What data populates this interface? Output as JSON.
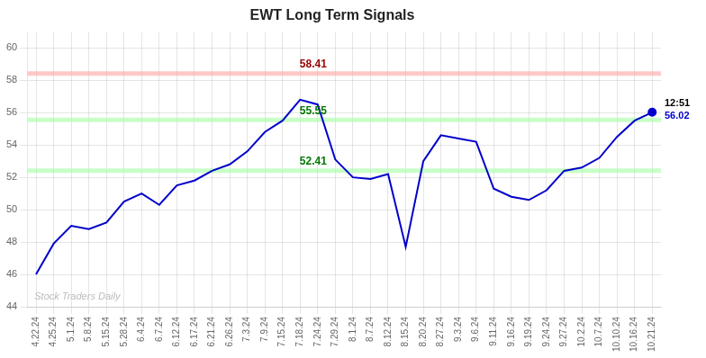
{
  "chart_data": {
    "type": "line",
    "title": "EWT Long Term Signals",
    "categories": [
      "4.22.24",
      "4.25.24",
      "5.1.24",
      "5.8.24",
      "5.15.24",
      "5.28.24",
      "6.4.24",
      "6.7.24",
      "6.12.24",
      "6.17.24",
      "6.21.24",
      "6.26.24",
      "7.3.24",
      "7.9.24",
      "7.15.24",
      "7.18.24",
      "7.24.24",
      "7.29.24",
      "8.1.24",
      "8.7.24",
      "8.12.24",
      "8.15.24",
      "8.20.24",
      "8.27.24",
      "9.3.24",
      "9.6.24",
      "9.11.24",
      "9.16.24",
      "9.19.24",
      "9.24.24",
      "9.27.24",
      "10.2.24",
      "10.7.24",
      "10.10.24",
      "10.16.24",
      "10.21.24"
    ],
    "values": [
      46.0,
      47.9,
      49.0,
      48.8,
      49.2,
      50.5,
      51.0,
      50.3,
      51.5,
      51.8,
      52.4,
      52.8,
      53.6,
      54.8,
      55.5,
      56.8,
      56.5,
      53.1,
      52.0,
      51.9,
      52.2,
      47.7,
      53.0,
      54.6,
      54.4,
      54.2,
      51.3,
      50.8,
      50.6,
      51.2,
      52.4,
      52.6,
      53.2,
      54.5,
      55.5,
      56.02
    ],
    "color": "#0000cc",
    "ylim": [
      44,
      61
    ],
    "yticks": [
      44,
      46,
      48,
      50,
      52,
      54,
      56,
      58,
      60
    ],
    "grid": true,
    "hlines": [
      {
        "value": 58.41,
        "label": "58.41",
        "color": "#ffaaaa",
        "label_color": "#990000"
      },
      {
        "value": 55.55,
        "label": "55.55",
        "color": "#aaffaa",
        "label_color": "#007700"
      },
      {
        "value": 52.41,
        "label": "52.41",
        "color": "#aaffaa",
        "label_color": "#007700"
      }
    ],
    "annotations": [
      {
        "text": "12:51",
        "color": "#000000"
      },
      {
        "text": "56.02",
        "value": 56.02
      },
      {
        "text": "Stock Traders Daily",
        "color": "#bbbbbb"
      }
    ]
  }
}
